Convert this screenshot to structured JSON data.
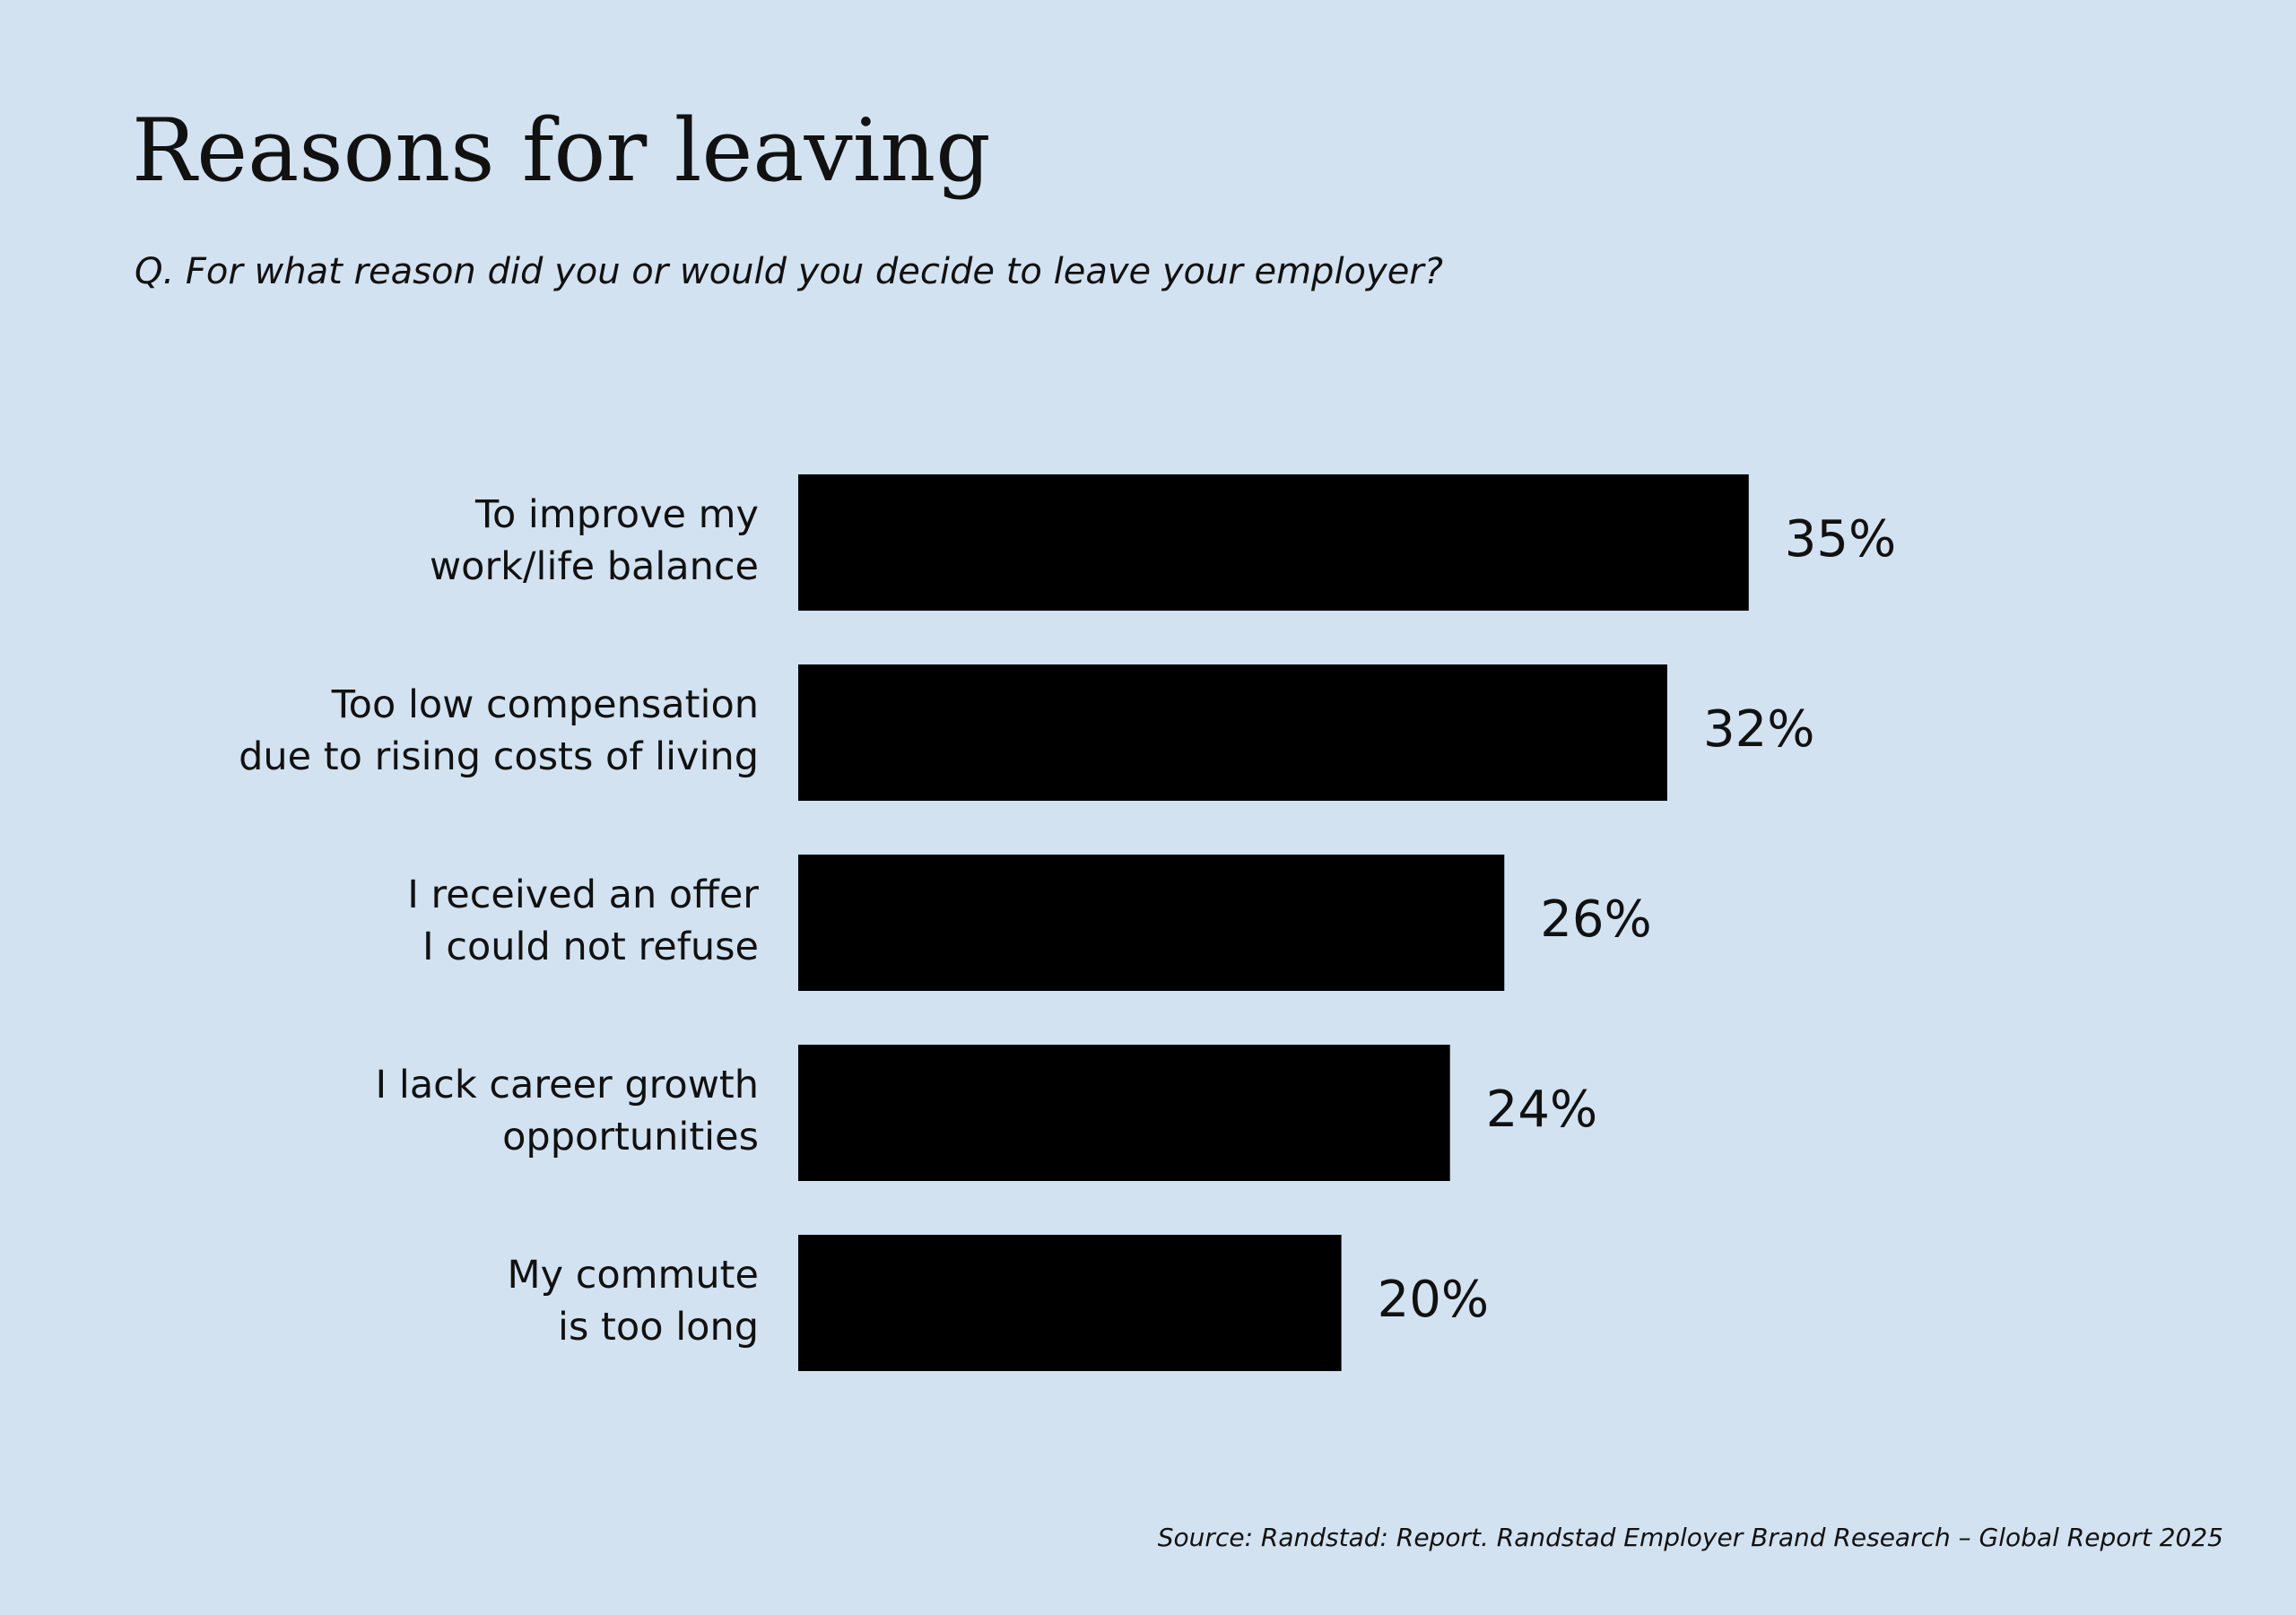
{
  "chart_data": {
    "type": "bar",
    "orientation": "horizontal",
    "title": "Reasons for leaving",
    "subtitle": "Q. For what reason did you or would you decide to leave your employer?",
    "categories": [
      "To improve my\nwork/life balance",
      "Too low compensation\ndue to rising costs of living",
      "I received an offer\nI could not refuse",
      "I lack career growth\nopportunities",
      "My commute\nis too long"
    ],
    "values": [
      35,
      32,
      26,
      24,
      20
    ],
    "value_labels": [
      "35%",
      "32%",
      "26%",
      "24%",
      "20%"
    ],
    "color": "#000000",
    "source": "Source: Randstad: Report. Randstad Employer Brand Research – Global Report 2025"
  }
}
